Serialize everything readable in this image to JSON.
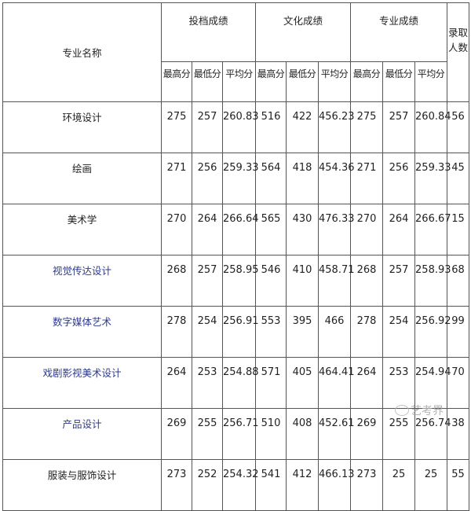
{
  "header": {
    "name_col": "专业名称",
    "groups": [
      "投档成绩",
      "文化成绩",
      "专业成绩"
    ],
    "count_col": "录取人数",
    "sub_cols": [
      "最高分",
      "最低分",
      "平均分"
    ]
  },
  "rows": [
    {
      "name": "环境设计",
      "link": false,
      "v": [
        "275",
        "257",
        "260.83",
        "516",
        "422",
        "456.23",
        "275",
        "257",
        "260.84",
        "56"
      ]
    },
    {
      "name": "绘画",
      "link": false,
      "v": [
        "271",
        "256",
        "259.33",
        "564",
        "418",
        "454.36",
        "271",
        "256",
        "259.33",
        "45"
      ]
    },
    {
      "name": "美术学",
      "link": false,
      "v": [
        "270",
        "264",
        "266.64",
        "565",
        "430",
        "476.33",
        "270",
        "264",
        "266.67",
        "15"
      ]
    },
    {
      "name": "视觉传达设计",
      "link": true,
      "v": [
        "268",
        "257",
        "258.95",
        "546",
        "410",
        "458.71",
        "268",
        "257",
        "258.93",
        "68"
      ]
    },
    {
      "name": "数字媒体艺术",
      "link": true,
      "v": [
        "278",
        "254",
        "256.91",
        "553",
        "395",
        "466",
        "278",
        "254",
        "256.92",
        "99"
      ]
    },
    {
      "name": "戏剧影视美术设计",
      "link": true,
      "v": [
        "264",
        "253",
        "254.88",
        "571",
        "405",
        "464.41",
        "264",
        "253",
        "254.94",
        "70"
      ]
    },
    {
      "name": "产品设计",
      "link": true,
      "v": [
        "269",
        "255",
        "256.71",
        "510",
        "408",
        "452.61",
        "269",
        "255",
        "256.74",
        "38"
      ]
    },
    {
      "name": "服装与服饰设计",
      "link": false,
      "v": [
        "273",
        "252",
        "254.32",
        "541",
        "412",
        "466.13",
        "273",
        "25",
        "25",
        "55"
      ]
    }
  ],
  "watermark": "艺考界",
  "colors": {
    "link_text": "#2e3a8c",
    "text": "#222222",
    "border": "#555555"
  }
}
